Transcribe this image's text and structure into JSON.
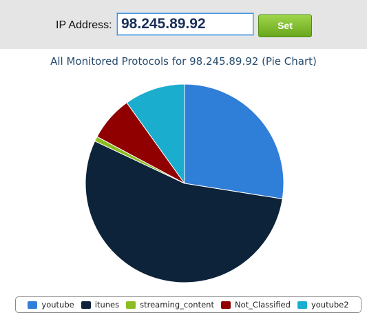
{
  "form": {
    "ip_label": "IP Address:",
    "ip_value": "98.245.89.92",
    "set_label": "Set"
  },
  "chart_data": {
    "type": "pie",
    "title": "All Monitored Protocols for 98.245.89.92 (Pie Chart)",
    "labels": [
      "youtube",
      "itunes",
      "streaming_content",
      "Not_Classified",
      "youtube2"
    ],
    "values": [
      27.5,
      54.5,
      0.8,
      7.3,
      9.9
    ],
    "unit": "%",
    "colors": [
      "#2f7ed8",
      "#0d233a",
      "#8bbc21",
      "#910000",
      "#1aadce"
    ],
    "start_angle_deg": 0,
    "direction": "clockwise",
    "legend_position": "bottom"
  }
}
